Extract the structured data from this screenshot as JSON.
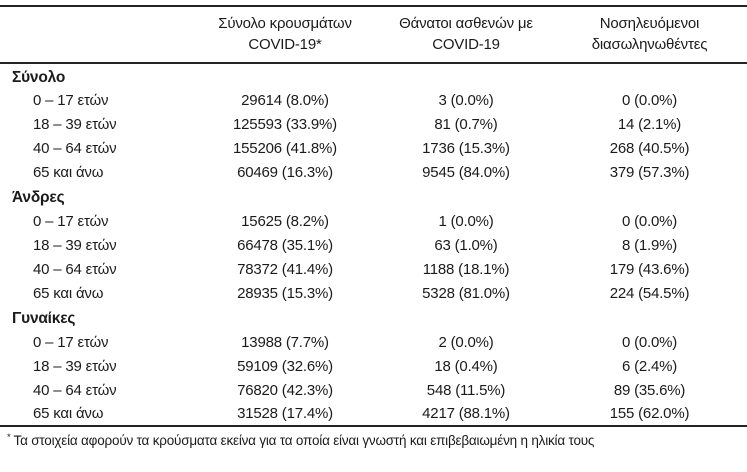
{
  "table": {
    "columns": [
      {
        "key": "age_group",
        "line1": "",
        "line2": ""
      },
      {
        "key": "cases",
        "line1": "Σύνολο κρουσμάτων",
        "line2": "COVID-19*"
      },
      {
        "key": "deaths",
        "line1": "Θάνατοι ασθενών με",
        "line2": "COVID-19"
      },
      {
        "key": "intubated",
        "line1": "Νοσηλευόμενοι",
        "line2": "διασωληνωθέντες"
      }
    ],
    "sections": [
      {
        "title": "Σύνολο",
        "rows": [
          {
            "label": "0 – 17 ετών",
            "cases": "29614 (8.0%)",
            "deaths": "3 (0.0%)",
            "intubated": "0 (0.0%)"
          },
          {
            "label": "18 – 39 ετών",
            "cases": "125593 (33.9%)",
            "deaths": "81 (0.7%)",
            "intubated": "14 (2.1%)"
          },
          {
            "label": "40 – 64 ετών",
            "cases": "155206 (41.8%)",
            "deaths": "1736 (15.3%)",
            "intubated": "268 (40.5%)"
          },
          {
            "label": "65 και άνω",
            "cases": "60469 (16.3%)",
            "deaths": "9545 (84.0%)",
            "intubated": "379 (57.3%)"
          }
        ]
      },
      {
        "title": "Άνδρες",
        "rows": [
          {
            "label": "0 – 17 ετών",
            "cases": "15625 (8.2%)",
            "deaths": "1 (0.0%)",
            "intubated": "0 (0.0%)"
          },
          {
            "label": "18 – 39 ετών",
            "cases": "66478 (35.1%)",
            "deaths": "63 (1.0%)",
            "intubated": "8 (1.9%)"
          },
          {
            "label": "40 – 64 ετών",
            "cases": "78372 (41.4%)",
            "deaths": "1188 (18.1%)",
            "intubated": "179 (43.6%)"
          },
          {
            "label": "65 και άνω",
            "cases": "28935 (15.3%)",
            "deaths": "5328 (81.0%)",
            "intubated": "224 (54.5%)"
          }
        ]
      },
      {
        "title": "Γυναίκες",
        "rows": [
          {
            "label": "0 – 17 ετών",
            "cases": "13988 (7.7%)",
            "deaths": "2 (0.0%)",
            "intubated": "0 (0.0%)"
          },
          {
            "label": "18 – 39 ετών",
            "cases": "59109 (32.6%)",
            "deaths": "18 (0.4%)",
            "intubated": "6 (2.4%)"
          },
          {
            "label": "40 – 64 ετών",
            "cases": "76820 (42.3%)",
            "deaths": "548 (11.5%)",
            "intubated": "89 (35.6%)"
          },
          {
            "label": "65 και άνω",
            "cases": "31528 (17.4%)",
            "deaths": "4217 (88.1%)",
            "intubated": "155 (62.0%)"
          }
        ]
      }
    ],
    "footnote_marker": "*",
    "footnote_text": "Τα στοιχεία αφορούν τα κρούσματα εκείνα για τα οποία είναι γνωστή και επιβεβαιωμένη η ηλικία τους"
  }
}
